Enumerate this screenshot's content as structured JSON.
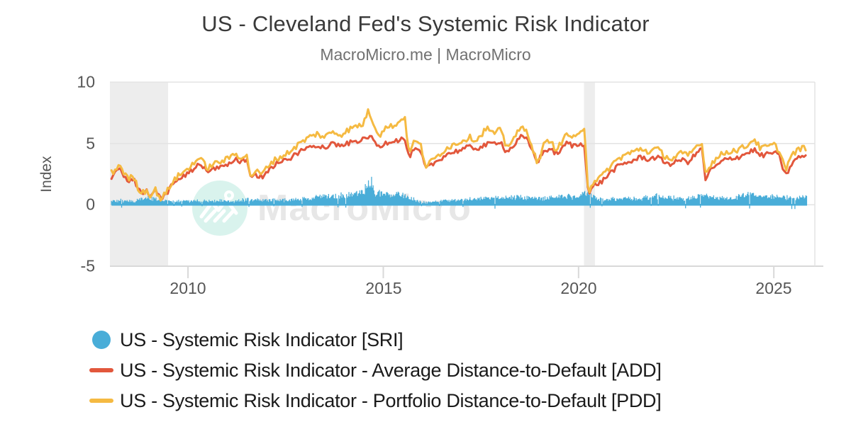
{
  "title": "US - Cleveland Fed's Systemic Risk Indicator",
  "subtitle": "MacroMicro.me | MacroMicro",
  "watermark": {
    "text": "MacroMicro"
  },
  "colors": {
    "sri_blue": "#49ADD8",
    "add_red": "#E2573C",
    "pdd_yellow": "#F5BA42",
    "recession_band": "#EDEDED",
    "gridline": "#E3E3E3",
    "axis_line": "#D9D9D9",
    "watermark_circle": "#D9F3ED",
    "watermark_text": "#E7E7E7"
  },
  "chart_data": {
    "type": "mixed",
    "title": "US - Cleveland Fed's Systemic Risk Indicator",
    "subtitle": "MacroMicro.me | MacroMicro",
    "xlabel": "",
    "ylabel": "Index",
    "ylim": [
      -5,
      10
    ],
    "xlim": [
      2008,
      2026.05
    ],
    "y_ticks": [
      10,
      5,
      0,
      -5
    ],
    "y_tick_labels": [
      "10",
      "5",
      "0",
      "-5"
    ],
    "x_ticks": [
      2010,
      2015,
      2020,
      2025
    ],
    "x_tick_labels": [
      "2010",
      "2015",
      "2020",
      "2025"
    ],
    "grid": "horizontal",
    "legend_position": "bottom-left",
    "recession_bands": [
      [
        2008.0,
        2009.49
      ],
      [
        2020.14,
        2020.42
      ]
    ],
    "x": [
      2008.04,
      2008.15,
      2008.25,
      2008.4,
      2008.5,
      2008.6,
      2008.7,
      2008.8,
      2008.95,
      2009.05,
      2009.15,
      2009.3,
      2009.45,
      2009.6,
      2009.8,
      2010.0,
      2010.15,
      2010.3,
      2010.5,
      2010.65,
      2010.8,
      2011.0,
      2011.2,
      2011.35,
      2011.5,
      2011.6,
      2011.75,
      2011.9,
      2012.1,
      2012.3,
      2012.5,
      2012.7,
      2012.9,
      2013.1,
      2013.3,
      2013.5,
      2013.7,
      2013.9,
      2014.1,
      2014.3,
      2014.5,
      2014.6,
      2014.75,
      2014.9,
      2015.0,
      2015.2,
      2015.4,
      2015.55,
      2015.65,
      2015.8,
      2015.95,
      2016.1,
      2016.25,
      2016.4,
      2016.6,
      2016.8,
      2017.0,
      2017.2,
      2017.4,
      2017.65,
      2017.8,
      2018.0,
      2018.15,
      2018.3,
      2018.55,
      2018.7,
      2018.95,
      2019.1,
      2019.25,
      2019.4,
      2019.55,
      2019.7,
      2019.85,
      2020.0,
      2020.15,
      2020.25,
      2020.4,
      2020.6,
      2020.8,
      2021.0,
      2021.2,
      2021.4,
      2021.6,
      2021.8,
      2022.0,
      2022.2,
      2022.4,
      2022.6,
      2022.8,
      2023.0,
      2023.15,
      2023.25,
      2023.4,
      2023.55,
      2023.7,
      2023.9,
      2024.1,
      2024.3,
      2024.5,
      2024.65,
      2024.8,
      2025.0,
      2025.15,
      2025.3,
      2025.45,
      2025.6,
      2025.75,
      2025.85
    ],
    "series": [
      {
        "name": "US - Systemic Risk Indicator [SRI]",
        "type": "bar",
        "color": "#49ADD8",
        "noise": 0.3,
        "x": [
          2008.04,
          2008.3,
          2008.6,
          2008.8,
          2009.0,
          2009.3,
          2009.6,
          2010.0,
          2010.4,
          2010.8,
          2011.2,
          2011.6,
          2011.9,
          2012.2,
          2012.6,
          2013.0,
          2013.4,
          2013.8,
          2014.2,
          2014.5,
          2014.65,
          2014.8,
          2015.0,
          2015.3,
          2015.6,
          2015.9,
          2016.1,
          2016.3,
          2016.7,
          2017.0,
          2017.5,
          2018.0,
          2018.4,
          2018.8,
          2019.2,
          2019.6,
          2020.0,
          2020.2,
          2020.5,
          2020.8,
          2021.2,
          2021.6,
          2022.0,
          2022.4,
          2022.8,
          2023.2,
          2023.6,
          2024.0,
          2024.3,
          2024.6,
          2025.0,
          2025.4,
          2025.7,
          2025.85
        ],
        "values": [
          0.25,
          0.35,
          0.3,
          0.55,
          0.6,
          0.4,
          0.3,
          0.35,
          0.3,
          0.35,
          0.3,
          0.5,
          0.4,
          0.45,
          0.4,
          0.5,
          0.7,
          0.8,
          0.9,
          1.2,
          2.4,
          1.0,
          1.1,
          1.0,
          0.8,
          0.3,
          0.15,
          0.3,
          0.4,
          0.45,
          0.5,
          0.6,
          0.7,
          0.6,
          0.6,
          0.8,
          0.6,
          1.1,
          0.5,
          0.5,
          0.55,
          0.6,
          0.75,
          0.6,
          0.55,
          0.8,
          0.6,
          0.6,
          1.0,
          0.7,
          0.8,
          0.6,
          0.65,
          0.6
        ]
      },
      {
        "name": "US - Systemic Risk Indicator - Average Distance-to-Default [ADD]",
        "type": "line",
        "color": "#E2573C",
        "noise": 0.2,
        "values": [
          2.3,
          2.6,
          3.0,
          2.2,
          1.9,
          2.2,
          1.4,
          0.9,
          1.1,
          0.6,
          1.2,
          0.5,
          0.9,
          1.7,
          2.2,
          2.5,
          3.0,
          3.3,
          2.7,
          2.9,
          3.1,
          3.3,
          3.7,
          3.5,
          3.6,
          2.2,
          2.4,
          2.3,
          3.0,
          3.4,
          3.6,
          4.0,
          4.4,
          4.7,
          4.9,
          4.7,
          5.0,
          4.8,
          5.0,
          5.2,
          5.3,
          5.6,
          5.3,
          4.6,
          5.0,
          5.2,
          5.3,
          5.4,
          3.9,
          4.5,
          4.3,
          2.9,
          3.3,
          3.6,
          4.1,
          4.3,
          4.5,
          4.7,
          4.6,
          4.9,
          5.0,
          5.2,
          4.3,
          4.7,
          5.6,
          5.2,
          3.5,
          4.3,
          4.6,
          4.2,
          4.4,
          5.1,
          4.8,
          4.9,
          5.0,
          0.8,
          1.6,
          1.9,
          2.6,
          3.1,
          3.4,
          3.6,
          3.9,
          3.7,
          3.9,
          3.5,
          3.3,
          3.7,
          3.5,
          4.1,
          4.7,
          2.1,
          2.9,
          3.2,
          3.6,
          3.8,
          3.9,
          4.2,
          4.5,
          4.0,
          4.1,
          4.3,
          3.9,
          2.3,
          3.3,
          3.8,
          4.0,
          3.9
        ]
      },
      {
        "name": "US - Systemic Risk Indicator - Portfolio Distance-to-Default [PDD]",
        "type": "line",
        "color": "#F5BA42",
        "noise": 0.24,
        "values": [
          2.6,
          2.9,
          3.3,
          2.4,
          2.1,
          2.4,
          1.5,
          1.0,
          1.2,
          0.7,
          1.3,
          0.5,
          1.0,
          1.9,
          2.5,
          2.9,
          3.5,
          3.8,
          3.0,
          3.3,
          3.5,
          3.7,
          4.2,
          3.9,
          4.0,
          2.4,
          2.7,
          2.5,
          3.4,
          3.8,
          4.1,
          4.6,
          5.1,
          5.5,
          5.8,
          5.5,
          6.0,
          5.7,
          6.1,
          6.4,
          6.6,
          7.7,
          6.7,
          5.6,
          6.2,
          6.4,
          6.7,
          7.3,
          4.3,
          5.2,
          4.9,
          3.1,
          3.6,
          4.0,
          4.6,
          4.9,
          5.2,
          5.5,
          5.3,
          6.3,
          5.8,
          6.1,
          4.7,
          5.3,
          6.3,
          5.9,
          3.3,
          4.8,
          5.3,
          4.6,
          4.9,
          5.9,
          5.4,
          5.6,
          6.4,
          1.0,
          2.0,
          2.3,
          3.1,
          3.7,
          4.1,
          4.3,
          4.6,
          4.3,
          4.6,
          4.0,
          3.7,
          4.2,
          4.0,
          4.7,
          5.2,
          2.6,
          3.4,
          3.8,
          4.2,
          4.4,
          4.5,
          4.8,
          5.4,
          4.6,
          4.7,
          4.9,
          4.4,
          2.9,
          4.0,
          4.4,
          4.7,
          4.5
        ]
      }
    ]
  },
  "legend": {
    "items": [
      {
        "label": "US - Systemic Risk Indicator [SRI]",
        "marker": "circle",
        "color": "#49ADD8"
      },
      {
        "label": "US - Systemic Risk Indicator - Average Distance-to-Default [ADD]",
        "marker": "dash",
        "color": "#E2573C"
      },
      {
        "label": "US - Systemic Risk Indicator - Portfolio Distance-to-Default [PDD]",
        "marker": "dash",
        "color": "#F5BA42"
      }
    ]
  }
}
